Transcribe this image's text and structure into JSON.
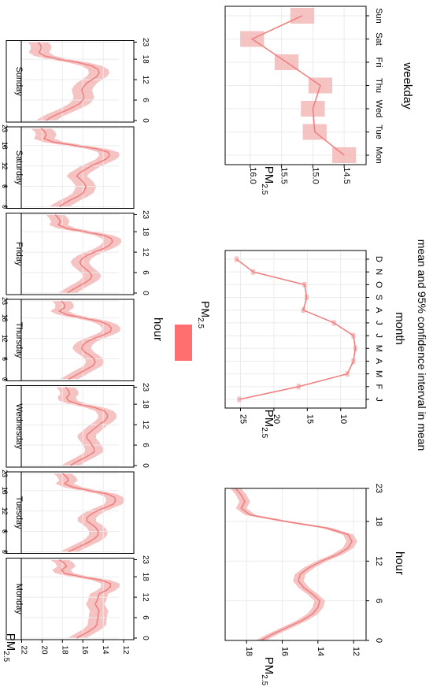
{
  "colors": {
    "line": "#f08080",
    "band": "#f5b8b8",
    "legend_swatch": "#ff6f6f",
    "grid": "#ebebeb",
    "strip": "#ffffff",
    "frame": "#000000"
  },
  "legend": {
    "label": "PM",
    "sub": "2.5"
  },
  "caption": "mean and 95% confidence interval in mean",
  "chart_data": [
    {
      "id": "day_hour",
      "type": "line",
      "x_label": "hour",
      "y_label": "PM",
      "y_sub": "2.5",
      "ylim": [
        11,
        23.5
      ],
      "y_ticks": [
        12,
        14,
        16,
        18,
        20,
        22
      ],
      "xlim": [
        0,
        23
      ],
      "x_ticks": [
        0,
        6,
        12,
        18,
        23
      ],
      "grid": true,
      "panels": [
        {
          "name": "Monday",
          "values": [
            16.6,
            16.0,
            15.4,
            14.9,
            14.6,
            14.6,
            14.5,
            14.5,
            14.4,
            14.6,
            14.8,
            14.6,
            14.5,
            14.4,
            13.7,
            13.3,
            13.3,
            14.2,
            16.2,
            17.8,
            18.1,
            17.6,
            17.8,
            18.3
          ],
          "ci": 0.9
        },
        {
          "name": "Tuesday",
          "values": [
            17.4,
            16.7,
            16.0,
            15.3,
            14.8,
            14.5,
            14.5,
            14.7,
            15.1,
            15.6,
            15.6,
            15.2,
            14.6,
            13.8,
            13.0,
            12.8,
            12.9,
            13.6,
            15.4,
            17.0,
            17.8,
            17.4,
            17.6,
            18.0
          ],
          "ci": 0.9
        },
        {
          "name": "Wednesday",
          "values": [
            17.2,
            16.7,
            16.0,
            15.4,
            14.9,
            14.9,
            15.1,
            15.3,
            15.6,
            15.6,
            15.2,
            14.8,
            14.4,
            13.9,
            13.6,
            13.6,
            13.9,
            14.8,
            16.4,
            17.4,
            17.6,
            17.3,
            17.4,
            17.7
          ],
          "ci": 0.9
        },
        {
          "name": "Thursday",
          "values": [
            17.4,
            16.8,
            16.2,
            15.6,
            15.0,
            14.8,
            14.9,
            15.3,
            15.8,
            16.1,
            16.0,
            15.6,
            14.9,
            14.0,
            13.3,
            13.2,
            13.5,
            14.3,
            16.0,
            17.6,
            18.3,
            17.8,
            17.8,
            18.1
          ],
          "ci": 0.9
        },
        {
          "name": "Friday",
          "values": [
            17.5,
            17.0,
            16.4,
            15.8,
            15.3,
            15.1,
            15.3,
            15.7,
            16.1,
            16.3,
            16.1,
            15.6,
            14.9,
            14.0,
            13.4,
            13.1,
            13.2,
            14.0,
            15.8,
            17.6,
            18.4,
            18.2,
            18.4,
            18.7
          ],
          "ci": 0.9
        },
        {
          "name": "Saturday",
          "values": [
            18.3,
            17.8,
            17.2,
            16.5,
            16.0,
            15.8,
            15.7,
            15.9,
            16.2,
            16.6,
            16.3,
            15.7,
            15.2,
            14.4,
            13.7,
            13.4,
            13.5,
            14.6,
            16.8,
            18.9,
            19.8,
            19.6,
            19.7,
            20.1
          ],
          "ci": 1.0
        },
        {
          "name": "Sunday",
          "values": [
            19.6,
            19.1,
            18.4,
            17.6,
            16.9,
            16.3,
            16.0,
            15.9,
            16.0,
            16.1,
            15.9,
            15.6,
            15.1,
            14.6,
            14.4,
            14.5,
            15.1,
            16.4,
            18.4,
            19.8,
            20.3,
            20.1,
            20.1,
            20.4
          ],
          "ci": 1.0
        }
      ]
    },
    {
      "id": "hour",
      "type": "line",
      "x_label": "hour",
      "y_label": "PM",
      "y_sub": "2.5",
      "xlim": [
        0,
        23
      ],
      "x_ticks": [
        0,
        6,
        12,
        18,
        23
      ],
      "ylim": [
        11.3,
        19.2
      ],
      "y_ticks": [
        12,
        14,
        16,
        18
      ],
      "grid": true,
      "x": [
        0,
        1,
        2,
        3,
        4,
        5,
        6,
        7,
        8,
        9,
        10,
        11,
        12,
        13,
        14,
        15,
        16,
        17,
        18,
        19,
        20,
        21,
        22,
        23
      ],
      "values": [
        17.2,
        16.5,
        15.7,
        14.9,
        14.3,
        14.0,
        13.9,
        14.3,
        14.8,
        15.1,
        15.0,
        14.5,
        13.8,
        12.9,
        12.3,
        12.1,
        12.3,
        13.5,
        15.8,
        17.8,
        18.3,
        18.1,
        18.3,
        18.6
      ],
      "ci": 0.3
    },
    {
      "id": "month",
      "type": "line",
      "x_label": "month",
      "y_label": "PM",
      "y_sub": "2.5",
      "categories": [
        "J",
        "F",
        "M",
        "A",
        "M",
        "J",
        "J",
        "A",
        "S",
        "O",
        "N",
        "D"
      ],
      "values": [
        25.2,
        16.3,
        9.0,
        8.1,
        7.8,
        8.1,
        11.0,
        15.6,
        15.1,
        15.4,
        23.1,
        25.6
      ],
      "ci": 0.3,
      "ylim": [
        6.2,
        27.3
      ],
      "y_ticks": [
        10,
        15,
        20,
        25
      ],
      "grid": true
    },
    {
      "id": "weekday",
      "type": "line",
      "x_label": "weekday",
      "y_label": "PM",
      "y_sub": "2.5",
      "categories": [
        "Mon",
        "Tue",
        "Wed",
        "Thu",
        "Fri",
        "Sat",
        "Sun"
      ],
      "values": [
        14.5,
        14.97,
        15.0,
        14.88,
        15.42,
        15.97,
        15.17
      ],
      "ci": 0.19,
      "ylim": [
        14.15,
        16.4
      ],
      "y_ticks": [
        14.5,
        15.0,
        15.5,
        16.0
      ],
      "grid": true
    }
  ]
}
